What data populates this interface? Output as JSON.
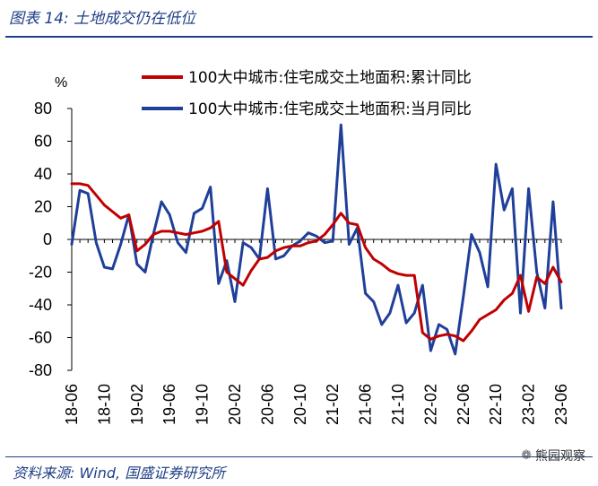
{
  "figure": {
    "title": "图表 14:  土地成交仍在低位",
    "source": "资料来源:  Wind,  国盛证券研究所",
    "watermark": "熊园观察",
    "watermark_icon": "wechat-icon"
  },
  "chart_data": {
    "type": "line",
    "title": "",
    "ylabel": "%",
    "xlabel": "",
    "ylim": [
      -80,
      80
    ],
    "yticks": [
      -80,
      -60,
      -40,
      -20,
      0,
      20,
      40,
      60,
      80
    ],
    "x_start": "2018-06",
    "x_end": "2023-06",
    "x_tick_labels": [
      "18-06",
      "18-10",
      "19-02",
      "19-06",
      "19-10",
      "20-02",
      "20-06",
      "20-10",
      "21-02",
      "21-06",
      "21-10",
      "22-02",
      "22-06",
      "22-10",
      "23-02",
      "23-06"
    ],
    "grid": false,
    "legend_position": "top",
    "series": [
      {
        "name": "100大中城市:住宅成交土地面积:累计同比",
        "color": "#c00000",
        "values": [
          34,
          34,
          33,
          27,
          21,
          17,
          13,
          15,
          -7,
          -3,
          3,
          5,
          5,
          4,
          3,
          4,
          5,
          7,
          11,
          -20,
          -24,
          -28,
          -19,
          -12,
          -11,
          -7,
          -5,
          -4,
          -4,
          -2,
          -1,
          3,
          9,
          16,
          10,
          9,
          -5,
          -12,
          -15,
          -19,
          -21,
          -22,
          -22,
          -57,
          -61,
          -59,
          -58,
          -59,
          -62,
          -56,
          -49,
          -46,
          -43,
          -37,
          -33,
          -22,
          -44,
          -23,
          -27,
          -17,
          -26
        ]
      },
      {
        "name": "100大中城市:住宅成交土地面积:当月同比",
        "color": "#1f3f99",
        "values": [
          -3,
          30,
          28,
          -2,
          -17,
          -18,
          -3,
          15,
          -15,
          -20,
          3,
          23,
          15,
          -2,
          -8,
          16,
          19,
          32,
          -27,
          -13,
          -38,
          -2,
          -5,
          -12,
          31,
          -12,
          -10,
          -4,
          -1,
          4,
          2,
          -2,
          -1,
          70,
          -3,
          7,
          -33,
          -38,
          -52,
          -45,
          -28,
          -51,
          -45,
          -28,
          -68,
          -52,
          -55,
          -70,
          -35,
          3,
          -8,
          -29,
          46,
          18,
          31,
          -45,
          31,
          -20,
          -42,
          23,
          -42
        ]
      }
    ]
  }
}
